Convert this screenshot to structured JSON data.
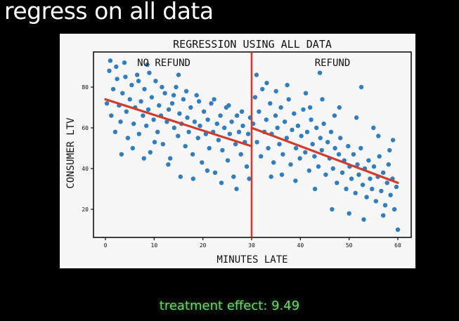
{
  "slide": {
    "title": "regress on all data",
    "footer": "treatment effect: 9.49"
  },
  "colors": {
    "background": "#000000",
    "points": "#2f7ec1",
    "regression_line": "#d23b2b",
    "cutoff_line": "#d23b2b",
    "footer_text": "#6fd36f"
  },
  "chart_data": {
    "type": "scatter",
    "title": "REGRESSION USING ALL DATA",
    "xlabel": "MINUTES LATE",
    "ylabel": "CONSUMER LTV",
    "xlim": [
      -2,
      62
    ],
    "ylim": [
      7,
      97
    ],
    "xticks": [
      0,
      10,
      20,
      30,
      40,
      50,
      60
    ],
    "yticks": [
      20,
      40,
      60,
      80
    ],
    "grid": false,
    "regions": [
      {
        "label": "NO REFUND",
        "x_from": 0,
        "x_to": 30
      },
      {
        "label": "REFUND",
        "x_from": 30,
        "x_to": 60
      }
    ],
    "cutoff_x": 30,
    "regression_segments": [
      {
        "x": [
          0,
          30
        ],
        "y": [
          74,
          51
        ]
      },
      {
        "x": [
          30,
          60
        ],
        "y": [
          60,
          33
        ]
      }
    ],
    "points": [
      [
        0.3,
        72
      ],
      [
        0.8,
        88
      ],
      [
        1.2,
        66
      ],
      [
        1.6,
        79
      ],
      [
        2.0,
        58
      ],
      [
        2.4,
        84
      ],
      [
        2.8,
        71
      ],
      [
        3.1,
        63
      ],
      [
        3.5,
        77
      ],
      [
        3.9,
        92
      ],
      [
        4.3,
        68
      ],
      [
        4.6,
        55
      ],
      [
        5.0,
        74
      ],
      [
        5.4,
        81
      ],
      [
        5.8,
        62
      ],
      [
        6.1,
        70
      ],
      [
        6.5,
        86
      ],
      [
        6.9,
        57
      ],
      [
        7.3,
        73
      ],
      [
        7.7,
        66
      ],
      [
        8.0,
        79
      ],
      [
        8.4,
        61
      ],
      [
        8.8,
        69
      ],
      [
        9.2,
        48
      ],
      [
        9.5,
        75
      ],
      [
        9.9,
        64
      ],
      [
        10.3,
        83
      ],
      [
        10.7,
        58
      ],
      [
        11.0,
        71
      ],
      [
        11.4,
        66
      ],
      [
        11.8,
        52
      ],
      [
        12.2,
        77
      ],
      [
        12.6,
        63
      ],
      [
        13.0,
        69
      ],
      [
        13.3,
        45
      ],
      [
        13.7,
        72
      ],
      [
        14.1,
        60
      ],
      [
        14.5,
        80
      ],
      [
        14.9,
        56
      ],
      [
        15.2,
        67
      ],
      [
        15.6,
        62
      ],
      [
        16.0,
        74
      ],
      [
        16.4,
        51
      ],
      [
        16.8,
        65
      ],
      [
        17.1,
        58
      ],
      [
        17.5,
        70
      ],
      [
        17.9,
        47
      ],
      [
        18.3,
        63
      ],
      [
        18.7,
        76
      ],
      [
        19.0,
        55
      ],
      [
        19.4,
        61
      ],
      [
        19.8,
        43
      ],
      [
        20.2,
        68
      ],
      [
        20.6,
        57
      ],
      [
        21.0,
        64
      ],
      [
        21.3,
        50
      ],
      [
        21.7,
        72
      ],
      [
        22.1,
        58
      ],
      [
        22.5,
        38
      ],
      [
        22.9,
        62
      ],
      [
        23.2,
        54
      ],
      [
        23.6,
        66
      ],
      [
        24.0,
        49
      ],
      [
        24.4,
        60
      ],
      [
        24.8,
        70
      ],
      [
        25.1,
        44
      ],
      [
        25.5,
        57
      ],
      [
        25.9,
        63
      ],
      [
        26.3,
        36
      ],
      [
        26.7,
        52
      ],
      [
        27.0,
        66
      ],
      [
        27.4,
        58
      ],
      [
        27.8,
        47
      ],
      [
        28.2,
        61
      ],
      [
        28.6,
        53
      ],
      [
        29.0,
        41
      ],
      [
        29.3,
        57
      ],
      [
        29.7,
        65
      ],
      [
        1.0,
        93
      ],
      [
        2.2,
        90
      ],
      [
        3.3,
        47
      ],
      [
        4.1,
        85
      ],
      [
        5.6,
        50
      ],
      [
        6.8,
        83
      ],
      [
        7.9,
        45
      ],
      [
        9.0,
        87
      ],
      [
        10.1,
        53
      ],
      [
        11.6,
        80
      ],
      [
        12.9,
        42
      ],
      [
        14.0,
        76
      ],
      [
        15.4,
        36
      ],
      [
        16.6,
        78
      ],
      [
        18.0,
        35
      ],
      [
        19.2,
        73
      ],
      [
        20.9,
        39
      ],
      [
        22.3,
        74
      ],
      [
        23.8,
        33
      ],
      [
        25.3,
        71
      ],
      [
        26.9,
        30
      ],
      [
        28.0,
        68
      ],
      [
        29.5,
        35
      ],
      [
        15.0,
        86
      ],
      [
        8.6,
        91
      ],
      [
        30.3,
        62
      ],
      [
        30.7,
        75
      ],
      [
        31.1,
        53
      ],
      [
        31.5,
        68
      ],
      [
        31.9,
        46
      ],
      [
        32.2,
        79
      ],
      [
        32.6,
        58
      ],
      [
        33.0,
        64
      ],
      [
        33.4,
        50
      ],
      [
        33.8,
        72
      ],
      [
        34.1,
        57
      ],
      [
        34.5,
        43
      ],
      [
        34.9,
        66
      ],
      [
        35.3,
        60
      ],
      [
        35.7,
        52
      ],
      [
        36.0,
        70
      ],
      [
        36.4,
        47
      ],
      [
        36.8,
        63
      ],
      [
        37.2,
        55
      ],
      [
        37.6,
        74
      ],
      [
        38.0,
        42
      ],
      [
        38.3,
        59
      ],
      [
        38.7,
        67
      ],
      [
        39.1,
        50
      ],
      [
        39.5,
        61
      ],
      [
        39.9,
        45
      ],
      [
        40.2,
        56
      ],
      [
        40.6,
        69
      ],
      [
        41.0,
        48
      ],
      [
        41.4,
        58
      ],
      [
        41.8,
        39
      ],
      [
        42.2,
        64
      ],
      [
        42.5,
        52
      ],
      [
        42.9,
        46
      ],
      [
        43.3,
        60
      ],
      [
        43.7,
        41
      ],
      [
        44.1,
        55
      ],
      [
        44.4,
        49
      ],
      [
        44.8,
        62
      ],
      [
        45.2,
        37
      ],
      [
        45.6,
        53
      ],
      [
        46.0,
        45
      ],
      [
        46.3,
        58
      ],
      [
        46.7,
        40
      ],
      [
        47.1,
        50
      ],
      [
        47.5,
        33
      ],
      [
        47.9,
        47
      ],
      [
        48.2,
        55
      ],
      [
        48.6,
        38
      ],
      [
        49.0,
        44
      ],
      [
        49.4,
        30
      ],
      [
        49.8,
        51
      ],
      [
        50.1,
        41
      ],
      [
        50.5,
        35
      ],
      [
        50.9,
        47
      ],
      [
        51.3,
        28
      ],
      [
        51.7,
        42
      ],
      [
        52.0,
        37
      ],
      [
        52.4,
        50
      ],
      [
        52.8,
        32
      ],
      [
        53.2,
        40
      ],
      [
        53.6,
        26
      ],
      [
        54.0,
        44
      ],
      [
        54.3,
        35
      ],
      [
        54.7,
        30
      ],
      [
        55.1,
        41
      ],
      [
        55.5,
        24
      ],
      [
        55.9,
        36
      ],
      [
        56.2,
        46
      ],
      [
        56.6,
        29
      ],
      [
        57.0,
        38
      ],
      [
        57.4,
        22
      ],
      [
        57.8,
        33
      ],
      [
        58.1,
        42
      ],
      [
        58.5,
        27
      ],
      [
        58.9,
        35
      ],
      [
        59.3,
        20
      ],
      [
        59.7,
        31
      ],
      [
        31.0,
        86
      ],
      [
        33.1,
        82
      ],
      [
        35.0,
        78
      ],
      [
        37.3,
        81
      ],
      [
        39.0,
        34
      ],
      [
        41.1,
        77
      ],
      [
        43.0,
        30
      ],
      [
        44.5,
        74
      ],
      [
        46.5,
        20
      ],
      [
        48.0,
        70
      ],
      [
        50.0,
        18
      ],
      [
        51.5,
        65
      ],
      [
        53.0,
        15
      ],
      [
        55.0,
        60
      ],
      [
        57.0,
        17
      ],
      [
        59.0,
        54
      ],
      [
        60.0,
        10
      ],
      [
        52.5,
        80
      ],
      [
        44.0,
        87
      ],
      [
        36.2,
        37
      ],
      [
        42.0,
        70
      ],
      [
        47.0,
        66
      ],
      [
        56.0,
        56
      ],
      [
        58.3,
        49
      ],
      [
        34.0,
        36
      ]
    ]
  }
}
